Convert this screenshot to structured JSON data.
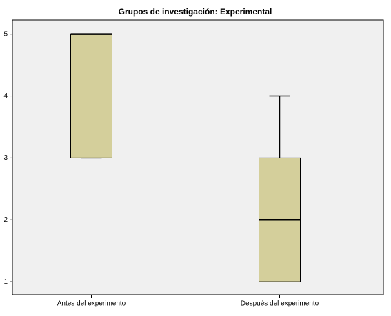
{
  "chart_data": {
    "type": "box",
    "title": "Grupos de investigación: Experimental",
    "categories": [
      "Antes del experimento",
      "Después del experimento"
    ],
    "boxes": [
      {
        "min": 3,
        "q1": 3,
        "median": 5,
        "q3": 5,
        "max": 5
      },
      {
        "min": 1,
        "q1": 1,
        "median": 2,
        "q3": 3,
        "max": 4
      }
    ],
    "color": "#d4cf9b",
    "ylim": [
      0.79,
      5.23
    ],
    "yticks": [
      1,
      2,
      3,
      4,
      5
    ]
  }
}
